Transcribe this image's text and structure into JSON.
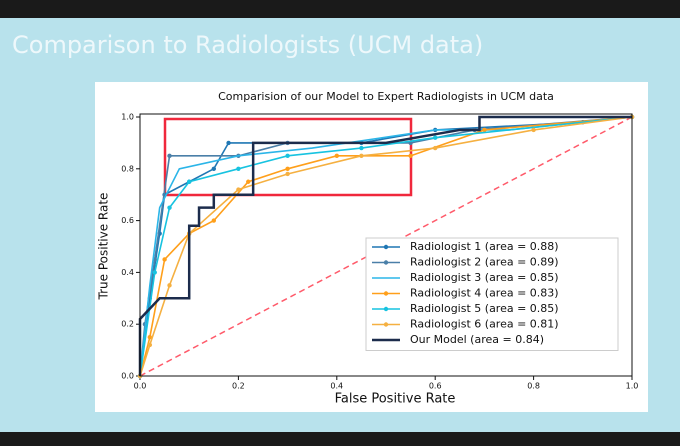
{
  "slide": {
    "title": "Comparison to Radiologists (UCM data)"
  },
  "chart_data": {
    "type": "line",
    "title": "Comparision of our Model to Expert Radiologists in UCM data",
    "x_label": "False Positive Rate",
    "y_label": "True Positive Rate",
    "xlim": [
      0,
      1
    ],
    "ylim": [
      0,
      1
    ],
    "xticks": [
      {
        "value": 0,
        "label": "0.0"
      },
      0.2,
      0.4,
      0.6,
      0.8,
      {
        "value": 1,
        "label": "1.0"
      }
    ],
    "yticks": [
      {
        "value": 0,
        "label": "0.0"
      },
      0.2,
      0.4,
      0.6,
      0.8,
      {
        "value": 1,
        "label": "1.0"
      }
    ],
    "legend": "lower right",
    "series": [
      {
        "name": "Radiologist 1 (area = 0.88)",
        "color": "#1f77b4",
        "marker": true,
        "x": [
          0,
          0.02,
          0.04,
          0.05,
          0.1,
          0.15,
          0.18,
          0.45,
          0.6,
          0.9,
          1
        ],
        "y": [
          0,
          0.3,
          0.55,
          0.7,
          0.75,
          0.8,
          0.9,
          0.9,
          0.95,
          0.98,
          1
        ]
      },
      {
        "name": "Radiologist 2 (area = 0.89)",
        "color": "#4a7fa8",
        "marker": true,
        "x": [
          0,
          0.01,
          0.03,
          0.06,
          0.2,
          0.3,
          0.55,
          0.68,
          1
        ],
        "y": [
          0,
          0.2,
          0.45,
          0.85,
          0.85,
          0.9,
          0.9,
          0.95,
          1
        ]
      },
      {
        "name": "Radiologist 3 (area = 0.85)",
        "color": "#2bb5e8",
        "marker": false,
        "x": [
          0,
          0.02,
          0.04,
          0.08,
          0.2,
          0.35,
          0.6,
          0.75,
          1
        ],
        "y": [
          0,
          0.35,
          0.65,
          0.8,
          0.85,
          0.88,
          0.95,
          0.95,
          1
        ]
      },
      {
        "name": "Radiologist 4 (area = 0.83)",
        "color": "#ff9f1a",
        "marker": true,
        "x": [
          0,
          0.02,
          0.05,
          0.1,
          0.15,
          0.22,
          0.3,
          0.4,
          0.55,
          0.7,
          1
        ],
        "y": [
          0,
          0.15,
          0.45,
          0.55,
          0.6,
          0.75,
          0.8,
          0.85,
          0.85,
          0.95,
          1
        ]
      },
      {
        "name": "Radiologist 5 (area = 0.85)",
        "color": "#17c3e0",
        "marker": true,
        "x": [
          0,
          0.03,
          0.06,
          0.1,
          0.2,
          0.3,
          0.45,
          0.6,
          1
        ],
        "y": [
          0,
          0.4,
          0.65,
          0.75,
          0.8,
          0.85,
          0.88,
          0.92,
          1
        ]
      },
      {
        "name": "Radiologist 6 (area = 0.81)",
        "color": "#f5b041",
        "marker": true,
        "x": [
          0,
          0.02,
          0.06,
          0.1,
          0.2,
          0.3,
          0.45,
          0.6,
          0.8,
          1
        ],
        "y": [
          0,
          0.12,
          0.35,
          0.55,
          0.72,
          0.78,
          0.85,
          0.88,
          0.95,
          1
        ]
      },
      {
        "name": "Our Model (area = 0.84)",
        "color": "#1c2c4c",
        "marker": false,
        "x": [
          0,
          0,
          0.04,
          0.1,
          0.1,
          0.12,
          0.12,
          0.15,
          0.15,
          0.23,
          0.23,
          0.5,
          0.65,
          0.69,
          0.69,
          1
        ],
        "y": [
          0,
          0.22,
          0.3,
          0.3,
          0.58,
          0.58,
          0.65,
          0.65,
          0.7,
          0.7,
          0.9,
          0.9,
          0.95,
          0.95,
          1,
          1
        ]
      }
    ]
  }
}
